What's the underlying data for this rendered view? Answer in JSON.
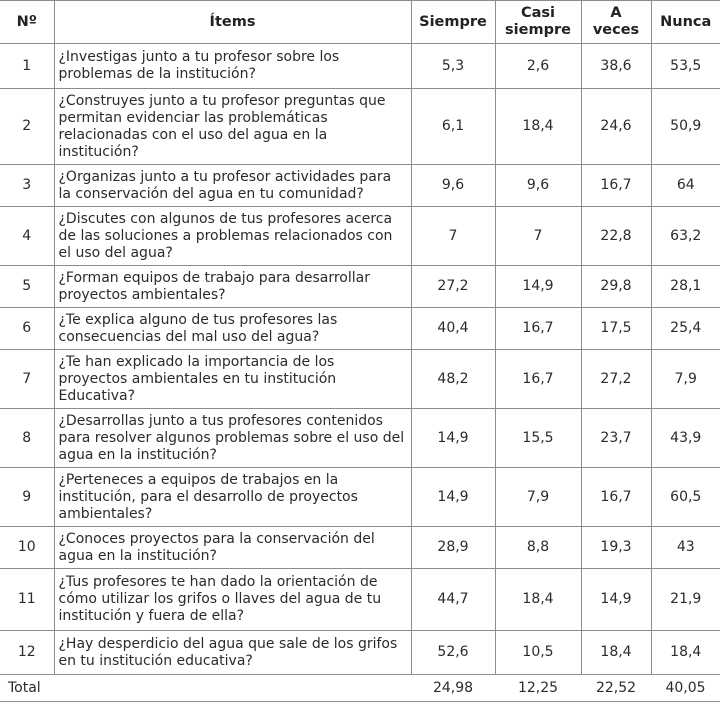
{
  "headers": {
    "num": "Nº",
    "items": "Ítems",
    "siempre": "Siempre",
    "casi_siempre_line1": "Casi",
    "casi_siempre_line2": "siempre",
    "a_veces_line1": "A",
    "a_veces_line2": "veces",
    "nunca": "Nunca"
  },
  "rows": [
    {
      "num": "1",
      "item": "¿Investigas junto a tu profesor sobre los problemas de la institución?",
      "siempre": "5,3",
      "casi": "2,6",
      "aveces": "38,6",
      "nunca": "53,5"
    },
    {
      "num": "2",
      "item": "¿Construyes junto a tu profesor preguntas que permitan evidenciar las problemáticas relacionadas con el uso del agua en la institución?",
      "siempre": "6,1",
      "casi": "18,4",
      "aveces": "24,6",
      "nunca": "50,9"
    },
    {
      "num": "3",
      "item": "¿Organizas junto a tu profesor actividades para la conservación del agua en tu comunidad?",
      "siempre": "9,6",
      "casi": "9,6",
      "aveces": "16,7",
      "nunca": "64"
    },
    {
      "num": "4",
      "item": "¿Discutes con algunos de tus profesores acerca de las soluciones a problemas relacionados con el uso del agua?",
      "siempre": "7",
      "casi": "7",
      "aveces": "22,8",
      "nunca": "63,2"
    },
    {
      "num": "5",
      "item": "¿Forman equipos de trabajo para desarrollar proyectos ambientales?",
      "siempre": "27,2",
      "casi": "14,9",
      "aveces": "29,8",
      "nunca": "28,1"
    },
    {
      "num": "6",
      "item": "¿Te explica alguno de tus profesores las consecuencias del mal uso del agua?",
      "siempre": "40,4",
      "casi": "16,7",
      "aveces": "17,5",
      "nunca": "25,4"
    },
    {
      "num": "7",
      "item": "¿Te han explicado la importancia de los proyectos ambientales en tu institución Educativa?",
      "siempre": "48,2",
      "casi": "16,7",
      "aveces": "27,2",
      "nunca": "7,9"
    },
    {
      "num": "8",
      "item": "¿Desarrollas junto a tus profesores contenidos para resolver algunos problemas sobre el uso del agua en la institución?",
      "siempre": "14,9",
      "casi": "15,5",
      "aveces": "23,7",
      "nunca": "43,9"
    },
    {
      "num": "9",
      "item": "¿Perteneces a equipos de trabajos en la institución, para el desarrollo de proyectos ambientales?",
      "siempre": "14,9",
      "casi": "7,9",
      "aveces": "16,7",
      "nunca": "60,5"
    },
    {
      "num": "10",
      "item": "¿Conoces proyectos para la conservación del agua en la institución?",
      "siempre": "28,9",
      "casi": "8,8",
      "aveces": "19,3",
      "nunca": "43"
    },
    {
      "num": "11",
      "item": "¿Tus profesores te han dado la orientación de cómo utilizar los grifos o llaves del agua de tu institución y fuera de ella?",
      "siempre": "44,7",
      "casi": "18,4",
      "aveces": "14,9",
      "nunca": "21,9"
    },
    {
      "num": "12",
      "item": "¿Hay desperdicio del agua que sale de los grifos en tu institución educativa?",
      "siempre": "52,6",
      "casi": "10,5",
      "aveces": "18,4",
      "nunca": "18,4"
    }
  ],
  "total": {
    "label": "Total",
    "siempre": "24,98",
    "casi": "12,25",
    "aveces": "22,52",
    "nunca": "40,05"
  }
}
